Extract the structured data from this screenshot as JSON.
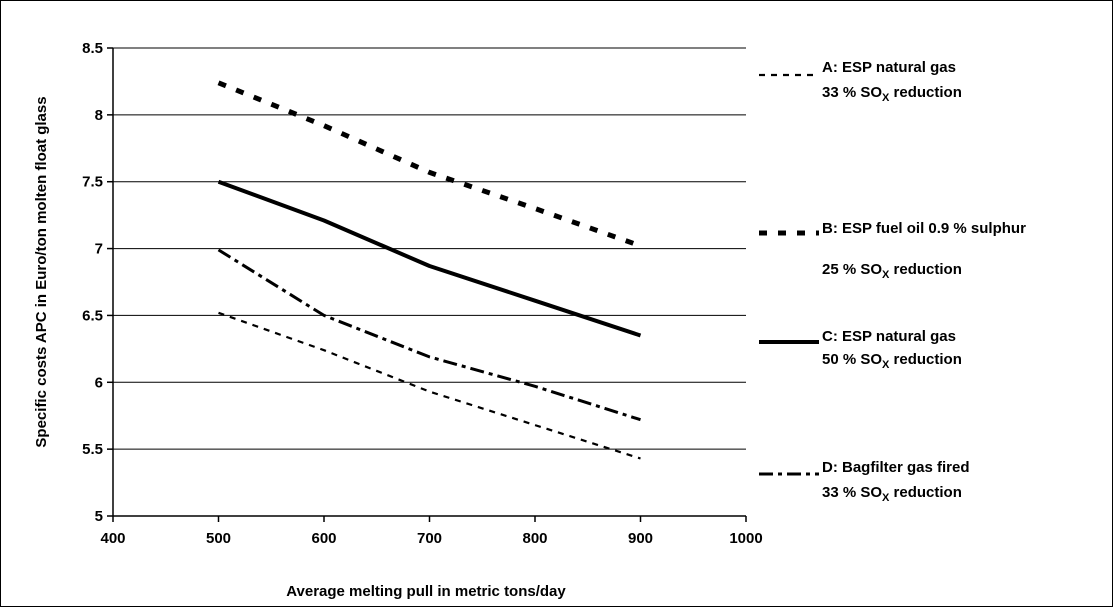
{
  "chart_data": {
    "type": "line",
    "title": "",
    "xlabel": "Average melting pull in metric tons/day",
    "ylabel": "Specific costs APC in Euro/ton molten float glass",
    "xlim": [
      400,
      1000
    ],
    "ylim": [
      5,
      8.5
    ],
    "xticks": [
      "400",
      "500",
      "600",
      "700",
      "800",
      "900",
      "1000"
    ],
    "yticks": [
      "5",
      "5.5",
      "6",
      "6.5",
      "7",
      "7.5",
      "8",
      "8.5"
    ],
    "grid": "horizontal",
    "legend_position": "right",
    "series": [
      {
        "name": "A: ESP natural gas",
        "name_line2_pre": "33 % SO",
        "name_line2_sub": "X",
        "name_line2_post": " reduction",
        "dash": "short-dash",
        "x": [
          500,
          600,
          700,
          800,
          900
        ],
        "values": [
          6.52,
          6.24,
          5.93,
          5.68,
          5.43
        ]
      },
      {
        "name": "B: ESP fuel oil 0.9 % sulphur",
        "name_line2_pre": "25 % SO",
        "name_line2_sub": "X",
        "name_line2_post": " reduction",
        "dash": "square-dot",
        "x": [
          500,
          600,
          700,
          800,
          900
        ],
        "values": [
          8.24,
          7.92,
          7.57,
          7.3,
          7.02
        ]
      },
      {
        "name": "C: ESP natural gas",
        "name_line2_pre": "50 % SO",
        "name_line2_sub": "X",
        "name_line2_post": " reduction",
        "dash": "solid",
        "x": [
          500,
          600,
          700,
          800,
          900
        ],
        "values": [
          7.5,
          7.21,
          6.87,
          6.61,
          6.35
        ]
      },
      {
        "name": "D: Bagfilter gas fired",
        "name_line2_pre": "33 % SO",
        "name_line2_sub": "X",
        "name_line2_post": " reduction",
        "dash": "dash-dot",
        "x": [
          500,
          600,
          700,
          800,
          900
        ],
        "values": [
          6.99,
          6.5,
          6.19,
          5.97,
          5.72
        ]
      }
    ]
  }
}
